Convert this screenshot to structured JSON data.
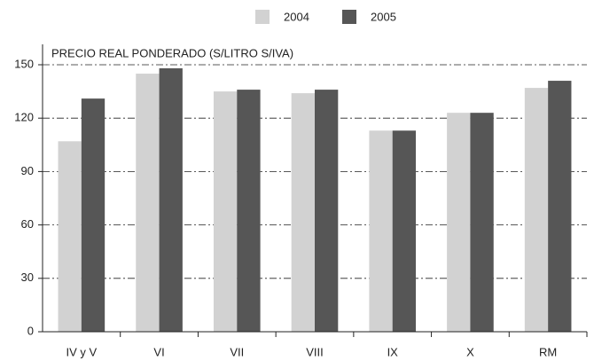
{
  "chart_data": {
    "type": "bar",
    "y_label": "PRECIO REAL PONDERADO (S/LITRO S/IVA)",
    "categories": [
      "IV y V",
      "VI",
      "VII",
      "VIII",
      "IX",
      "X",
      "RM"
    ],
    "series": [
      {
        "name": "2004",
        "color": "#d2d2d2",
        "values": [
          107,
          145,
          135,
          134,
          113,
          123,
          137
        ]
      },
      {
        "name": "2005",
        "color": "#565656",
        "values": [
          131,
          148,
          136,
          136,
          113,
          123,
          141
        ]
      }
    ],
    "ylim": [
      0,
      150
    ],
    "yticks": [
      0,
      30,
      60,
      90,
      120,
      150
    ],
    "grid": true,
    "legend": "top"
  }
}
